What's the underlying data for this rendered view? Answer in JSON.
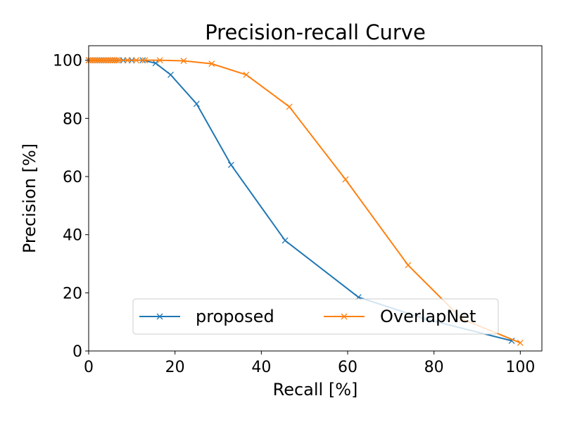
{
  "chart_data": {
    "type": "line",
    "title": "Precision-recall Curve",
    "xlabel": "Recall [%]",
    "ylabel": "Precision [%]",
    "xlim": [
      0,
      105
    ],
    "ylim": [
      0,
      105
    ],
    "xticks": [
      "0",
      "20",
      "40",
      "60",
      "80",
      "100"
    ],
    "yticks": [
      "0",
      "20",
      "40",
      "60",
      "80",
      "100"
    ],
    "grid": false,
    "legend": {
      "position": "bottom-center",
      "columns": 2
    },
    "series": [
      {
        "name": "proposed",
        "color": "#1f77b4",
        "marker": "x",
        "x": [
          0,
          0.5,
          1,
          1.5,
          2,
          2.5,
          3,
          3.5,
          4,
          4.5,
          5,
          5.5,
          6,
          6.5,
          7,
          8,
          9,
          10,
          12.5,
          15.5,
          19,
          25,
          33,
          45.5,
          62.5,
          78,
          98
        ],
        "y": [
          100,
          100,
          100,
          100,
          100,
          100,
          100,
          100,
          100,
          100,
          100,
          100,
          100,
          100,
          100,
          100,
          100,
          100,
          100,
          99,
          95,
          85,
          64,
          38,
          18.5,
          11,
          3.5
        ]
      },
      {
        "name": "OverlapNet",
        "color": "#ff7f0e",
        "marker": "x",
        "x": [
          0,
          0.5,
          1,
          1.5,
          2,
          2.5,
          3,
          3.5,
          4,
          4.5,
          5,
          5.5,
          6,
          6.5,
          7,
          9,
          11,
          13,
          16.5,
          22,
          28.5,
          36.5,
          46.5,
          59.5,
          74,
          86.5,
          100
        ],
        "y": [
          100,
          100,
          100,
          100,
          100,
          100,
          100,
          100,
          100,
          100,
          100,
          100,
          100,
          100,
          100,
          100,
          100,
          100,
          100,
          99.8,
          98.8,
          95,
          84,
          59,
          29.5,
          11,
          2.8
        ]
      }
    ]
  }
}
